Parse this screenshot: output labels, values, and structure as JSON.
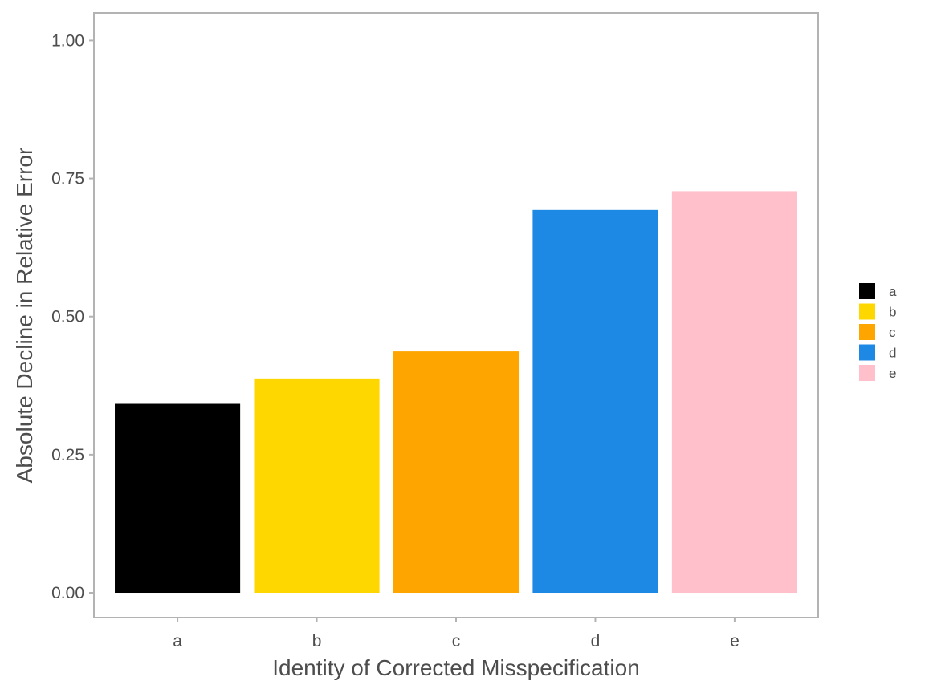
{
  "chart_data": {
    "type": "bar",
    "title": "",
    "xlabel": "Identity of Corrected Misspecification",
    "ylabel": "Absolute Decline in Relative Error",
    "categories": [
      "a",
      "b",
      "c",
      "d",
      "e"
    ],
    "values": [
      0.342,
      0.388,
      0.437,
      0.693,
      0.727
    ],
    "colors": [
      "#000000",
      "#FFD700",
      "#FFA500",
      "#1E88E5",
      "#FFC0CB"
    ],
    "ylim": [
      -0.045,
      1.05
    ],
    "yticks": [
      0.0,
      0.25,
      0.5,
      0.75,
      1.0
    ],
    "ytick_labels": [
      "0.00",
      "0.25",
      "0.50",
      "0.75",
      "1.00"
    ],
    "grid": false,
    "panel_border_color": "#b3b3b3",
    "legend": {
      "placement": "right",
      "entries": [
        "a",
        "b",
        "c",
        "d",
        "e"
      ]
    }
  }
}
